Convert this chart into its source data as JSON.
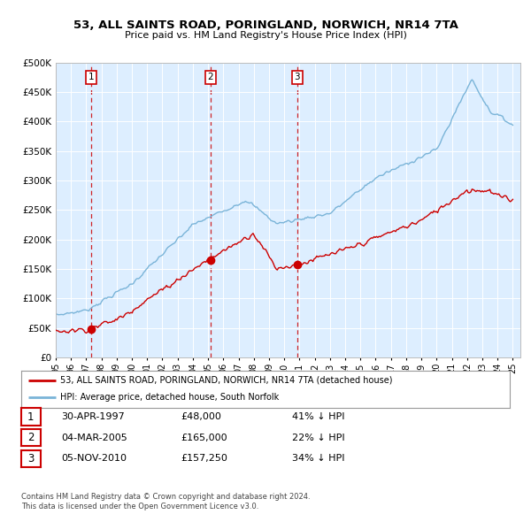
{
  "title": "53, ALL SAINTS ROAD, PORINGLAND, NORWICH, NR14 7TA",
  "subtitle": "Price paid vs. HM Land Registry's House Price Index (HPI)",
  "sale_years": [
    1997.33,
    2005.17,
    2010.84
  ],
  "sale_prices": [
    48000,
    165000,
    157250
  ],
  "sale_labels": [
    "1",
    "2",
    "3"
  ],
  "sale_info": [
    [
      "1",
      "30-APR-1997",
      "£48,000",
      "41% ↓ HPI"
    ],
    [
      "2",
      "04-MAR-2005",
      "£165,000",
      "22% ↓ HPI"
    ],
    [
      "3",
      "05-NOV-2010",
      "£157,250",
      "34% ↓ HPI"
    ]
  ],
  "legend_labels": [
    "53, ALL SAINTS ROAD, PORINGLAND, NORWICH, NR14 7TA (detached house)",
    "HPI: Average price, detached house, South Norfolk"
  ],
  "footer": [
    "Contains HM Land Registry data © Crown copyright and database right 2024.",
    "This data is licensed under the Open Government Licence v3.0."
  ],
  "hpi_color": "#7ab4d8",
  "sale_color": "#cc0000",
  "background_color": "#ddeeff",
  "ylim": [
    0,
    500000
  ],
  "yticks": [
    0,
    50000,
    100000,
    150000,
    200000,
    250000,
    300000,
    350000,
    400000,
    450000,
    500000
  ],
  "xlim_start": 1995.0,
  "xlim_end": 2025.5
}
